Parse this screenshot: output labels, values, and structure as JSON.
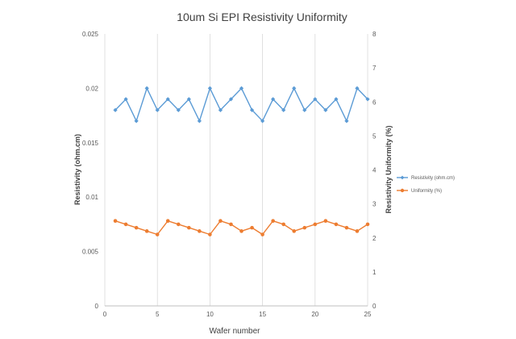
{
  "chart_data": {
    "type": "line",
    "title": "10um Si EPI Resistivity Uniformity",
    "xlabel": "Wafer number",
    "ylabel_left": "Resistivity (ohm.cm)",
    "ylabel_right": "Resistivity Uniformity (%)",
    "xlim": [
      0,
      25
    ],
    "ylim_left": [
      0,
      0.025
    ],
    "ylim_right": [
      0,
      8
    ],
    "x_ticks": [
      "0",
      "5",
      "10",
      "15",
      "20",
      "25"
    ],
    "y_ticks_left": [
      "0",
      "0.005",
      "0.01",
      "0.015",
      "0.02",
      "0.025"
    ],
    "y_ticks_right": [
      "0",
      "1",
      "2",
      "3",
      "4",
      "5",
      "6",
      "7",
      "8"
    ],
    "grid": "vertical",
    "legend_position": "right",
    "x": [
      1,
      2,
      3,
      4,
      5,
      6,
      7,
      8,
      9,
      10,
      11,
      12,
      13,
      14,
      15,
      16,
      17,
      18,
      19,
      20,
      21,
      22,
      23,
      24,
      25
    ],
    "series": [
      {
        "name": "Resistivity (ohm.cm)",
        "axis": "left",
        "color": "#5B9BD5",
        "values": [
          0.018,
          0.019,
          0.017,
          0.02,
          0.018,
          0.019,
          0.018,
          0.019,
          0.017,
          0.02,
          0.018,
          0.019,
          0.02,
          0.018,
          0.017,
          0.019,
          0.018,
          0.02,
          0.018,
          0.019,
          0.018,
          0.019,
          0.017,
          0.02,
          0.019
        ]
      },
      {
        "name": "Uniformity (%)",
        "axis": "right",
        "color": "#ED7D31",
        "values": [
          2.5,
          2.4,
          2.3,
          2.2,
          2.1,
          2.5,
          2.4,
          2.3,
          2.2,
          2.1,
          2.5,
          2.4,
          2.2,
          2.3,
          2.1,
          2.5,
          2.4,
          2.2,
          2.3,
          2.4,
          2.5,
          2.4,
          2.3,
          2.2,
          2.4
        ]
      }
    ]
  }
}
